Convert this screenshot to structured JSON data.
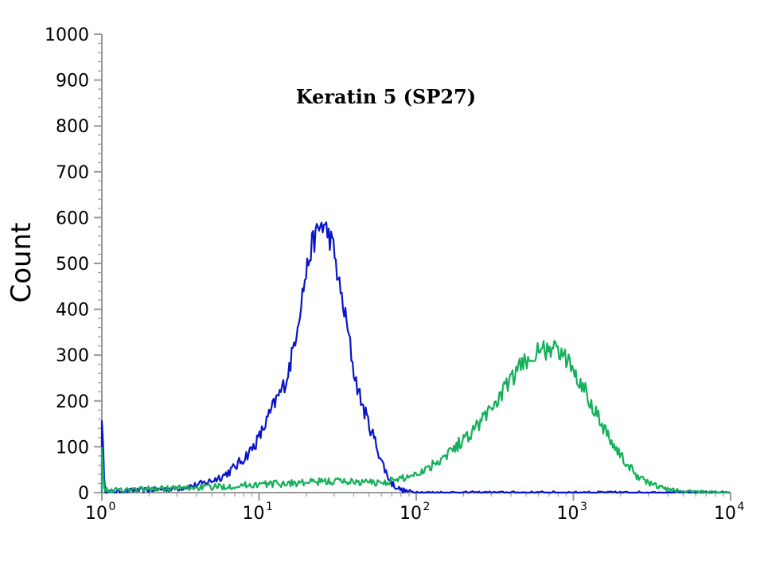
{
  "chart_data": {
    "type": "line",
    "title": "Keratin 5 (SP27)",
    "xlabel": "",
    "ylabel": "Count",
    "xscale": "log10",
    "xlim": [
      1,
      10000
    ],
    "ylim": [
      0,
      1000
    ],
    "y_ticks": [
      0,
      100,
      200,
      300,
      400,
      500,
      600,
      700,
      800,
      900,
      1000
    ],
    "x_ticks": [
      {
        "base": "10",
        "exp": "0",
        "value": 1
      },
      {
        "base": "10",
        "exp": "1",
        "value": 10
      },
      {
        "base": "10",
        "exp": "2",
        "value": 100
      },
      {
        "base": "10",
        "exp": "3",
        "value": 1000
      },
      {
        "base": "10",
        "exp": "4",
        "value": 10000
      }
    ],
    "grid": false,
    "legend": "none",
    "series": [
      {
        "color": "#0a14c8",
        "x": [
          1,
          1.04,
          1.1,
          1.5,
          2,
          3,
          4,
          5,
          6,
          7,
          8,
          9,
          10,
          11,
          12,
          13,
          14,
          15,
          16,
          17,
          18,
          19,
          20,
          21,
          22,
          23,
          24,
          25,
          26,
          27,
          28,
          29,
          30,
          31,
          32,
          34,
          36,
          38,
          40,
          43,
          46,
          50,
          55,
          60,
          65,
          70,
          75,
          80,
          90,
          100,
          110,
          130,
          200,
          500,
          1000,
          3000,
          10000
        ],
        "y": [
          170,
          5,
          2,
          4,
          6,
          9,
          16,
          26,
          38,
          55,
          75,
          95,
          120,
          150,
          180,
          205,
          225,
          250,
          290,
          340,
          390,
          440,
          480,
          520,
          545,
          560,
          575,
          585,
          580,
          570,
          560,
          545,
          525,
          495,
          460,
          415,
          370,
          320,
          265,
          220,
          185,
          150,
          110,
          70,
          40,
          20,
          12,
          6,
          2,
          1,
          0,
          0,
          0,
          0,
          0,
          0,
          0
        ]
      },
      {
        "color": "#14b05a",
        "x": [
          1,
          1.04,
          1.1,
          2,
          5,
          10,
          20,
          30,
          40,
          50,
          60,
          70,
          80,
          90,
          100,
          120,
          150,
          200,
          250,
          300,
          350,
          400,
          450,
          500,
          550,
          600,
          650,
          700,
          750,
          800,
          900,
          1000,
          1200,
          1400,
          1600,
          1800,
          2000,
          2200,
          2500,
          3000,
          3500,
          4000,
          5000,
          6000,
          10000
        ],
        "y": [
          110,
          6,
          5,
          8,
          12,
          18,
          22,
          25,
          24,
          22,
          22,
          26,
          30,
          36,
          42,
          55,
          80,
          115,
          150,
          185,
          215,
          245,
          270,
          290,
          300,
          305,
          310,
          315,
          312,
          308,
          290,
          270,
          220,
          175,
          135,
          105,
          80,
          60,
          40,
          22,
          12,
          7,
          3,
          2,
          0
        ]
      }
    ]
  }
}
